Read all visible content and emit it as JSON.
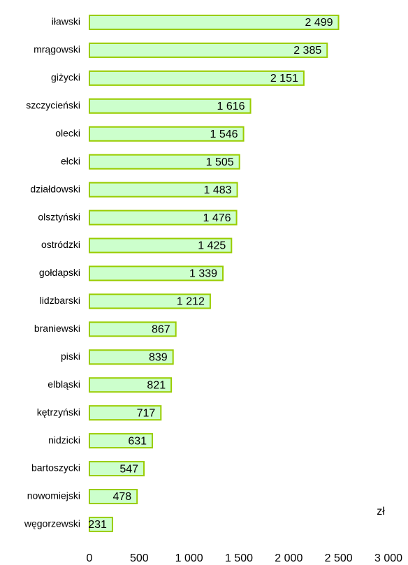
{
  "chart_data": {
    "type": "hbar",
    "categories": [
      "iławski",
      "mrągowski",
      "giżycki",
      "szczycieński",
      "olecki",
      "ełcki",
      "działdowski",
      "olsztyński",
      "ostródzki",
      "gołdapski",
      "lidzbarski",
      "braniewski",
      "piski",
      "elbląski",
      "kętrzyński",
      "nidzicki",
      "bartoszycki",
      "nowomiejski",
      "węgorzewski"
    ],
    "values": [
      2499,
      2385,
      2151,
      1616,
      1546,
      1505,
      1483,
      1476,
      1425,
      1339,
      1212,
      867,
      839,
      821,
      717,
      631,
      547,
      478,
      231
    ],
    "value_labels": [
      "2 499",
      "2 385",
      "2 151",
      "1 616",
      "1 546",
      "1 505",
      "1 483",
      "1 476",
      "1 425",
      "1 339",
      "1 212",
      "867",
      "839",
      "821",
      "717",
      "631",
      "547",
      "478",
      "231"
    ],
    "color": "#ccffcc",
    "edge_color": "#99cc00",
    "xlim": [
      0,
      3000
    ],
    "xticks": [
      0,
      500,
      {
        "value": 1000,
        "label": "1 000"
      },
      {
        "value": 1500,
        "label": "1 500"
      },
      {
        "value": 2000,
        "label": "2 000"
      },
      {
        "value": 2500,
        "label": "2 500"
      },
      {
        "value": 3000,
        "label": "3 000"
      }
    ],
    "annotation": "zł"
  }
}
